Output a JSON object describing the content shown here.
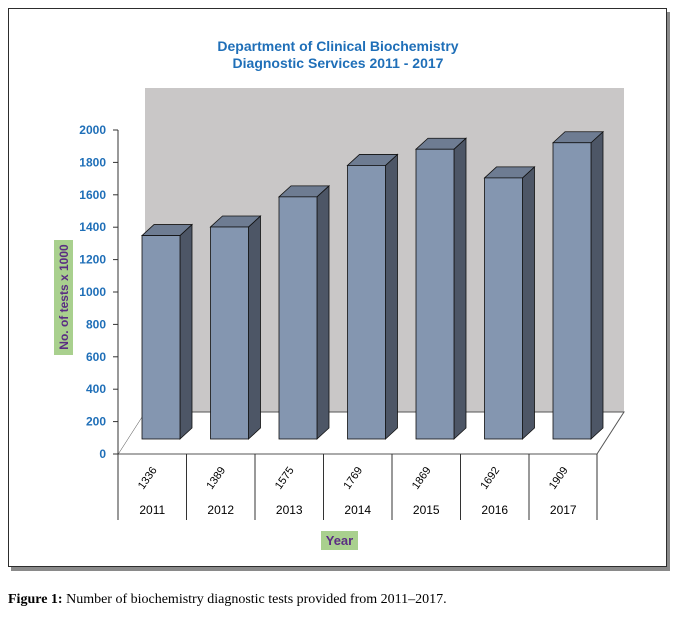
{
  "chart_data": {
    "type": "bar",
    "title_line1": "Department of Clinical Biochemistry",
    "title_line2": "Diagnostic Services 2011 - 2017",
    "xlabel": "Year",
    "ylabel": "No. of tests x 1000",
    "ylim": [
      0,
      2000
    ],
    "yticks": [
      0,
      200,
      400,
      600,
      800,
      1000,
      1200,
      1400,
      1600,
      1800,
      2000
    ],
    "categories": [
      "2011",
      "2012",
      "2013",
      "2014",
      "2015",
      "2016",
      "2017"
    ],
    "values": [
      1336,
      1389,
      1575,
      1769,
      1869,
      1692,
      1909
    ],
    "data_table": true,
    "grid": false,
    "colors": {
      "bar_front": "#8496b0",
      "bar_side": "#4d5666",
      "bar_top": "#6e7c92",
      "wall": "#c9c7c7",
      "title": "#1f6fb8",
      "axis_label_bg": "#a9d08e",
      "axis_label_text": "#5b2d83"
    }
  },
  "caption": {
    "label": "Figure 1:",
    "text": " Number of biochemistry diagnostic tests provided from 2011–2017."
  }
}
